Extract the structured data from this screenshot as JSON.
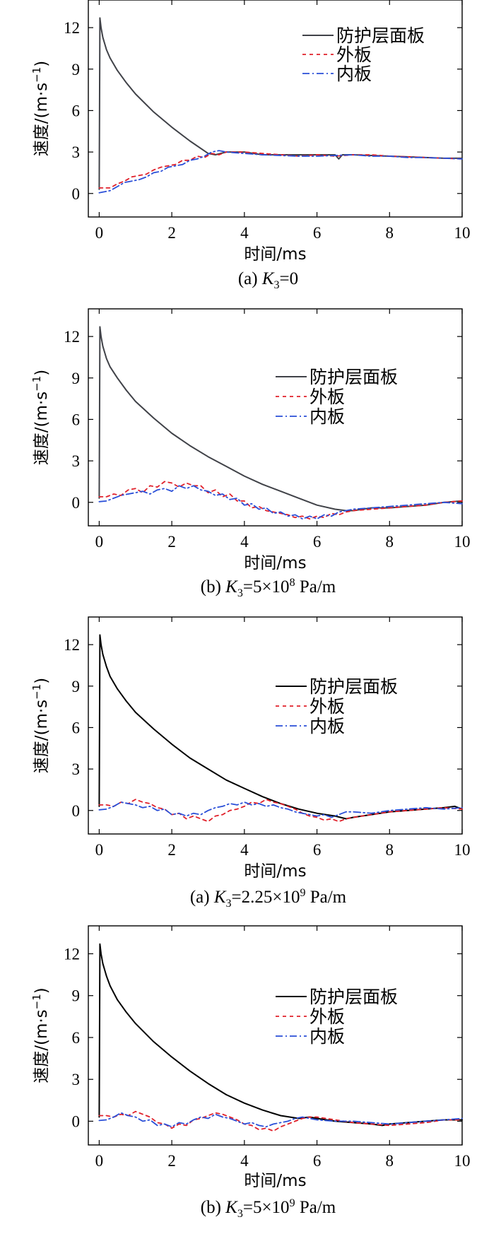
{
  "figure": {
    "colors": {
      "panel_gray": "#404248",
      "panel_black": "#000000",
      "outer_plate": "#e0202a",
      "inner_plate": "#2a4fd8"
    }
  },
  "chart_data": [
    {
      "type": "line",
      "caption": {
        "prefix": "(a) ",
        "var": "K",
        "sub": "3",
        "rest": "=0",
        "sup": "",
        "tail": ""
      },
      "xlabel": "时间/ms",
      "ylabel": "速度/(m·s",
      "ylabel_sup": "−1",
      "ylabel_close": ")",
      "xlim": [
        -0.3,
        10
      ],
      "ylim": [
        -1.7,
        14
      ],
      "xticks": [
        0,
        2,
        4,
        6,
        8,
        10
      ],
      "yticks": [
        0,
        3,
        6,
        9,
        12
      ],
      "legend_placement": "top-right",
      "series": [
        {
          "name": "防护层面板",
          "style": "solid",
          "color_key": "panel_gray",
          "x": [
            0,
            0.02,
            0.05,
            0.1,
            0.2,
            0.3,
            0.5,
            0.75,
            1.0,
            1.5,
            2.0,
            2.5,
            3.0,
            3.2,
            3.5,
            4.0,
            4.5,
            5.0,
            5.5,
            6.0,
            6.5,
            6.6,
            6.7,
            7.0,
            7.5,
            8.0,
            8.5,
            9.0,
            9.5,
            10.0
          ],
          "y": [
            0.3,
            12.7,
            12.0,
            11.3,
            10.4,
            9.8,
            8.9,
            8.0,
            7.2,
            5.9,
            4.8,
            3.8,
            2.9,
            2.8,
            3.0,
            3.0,
            2.8,
            2.8,
            2.8,
            2.8,
            2.8,
            2.5,
            2.8,
            2.8,
            2.75,
            2.7,
            2.65,
            2.6,
            2.55,
            2.55
          ]
        },
        {
          "name": "外板",
          "style": "dashed",
          "color_key": "outer_plate",
          "x": [
            0,
            0.1,
            0.3,
            0.5,
            0.7,
            0.9,
            1.1,
            1.3,
            1.5,
            1.7,
            1.9,
            2.1,
            2.3,
            2.5,
            2.7,
            2.9,
            3.1,
            3.3,
            3.5,
            4.0,
            4.5,
            5.0,
            5.5,
            6.0,
            6.5,
            7.0,
            7.5,
            8.0,
            8.5,
            9.0,
            9.5,
            10.0
          ],
          "y": [
            0.4,
            0.4,
            0.4,
            0.7,
            0.9,
            1.2,
            1.3,
            1.4,
            1.7,
            1.9,
            2.0,
            2.1,
            2.4,
            2.4,
            2.7,
            2.6,
            2.9,
            2.8,
            3.0,
            3.0,
            2.9,
            2.8,
            2.7,
            2.8,
            2.7,
            2.8,
            2.8,
            2.7,
            2.65,
            2.6,
            2.55,
            2.5
          ]
        },
        {
          "name": "内板",
          "style": "dashdot",
          "color_key": "inner_plate",
          "x": [
            0,
            0.1,
            0.3,
            0.5,
            0.7,
            0.9,
            1.1,
            1.3,
            1.5,
            1.7,
            1.9,
            2.1,
            2.3,
            2.5,
            2.7,
            2.9,
            3.1,
            3.3,
            3.5,
            4.0,
            4.5,
            5.0,
            5.5,
            6.0,
            6.5,
            7.0,
            7.5,
            8.0,
            8.5,
            9.0,
            9.5,
            10.0
          ],
          "y": [
            0.05,
            0.1,
            0.2,
            0.5,
            0.8,
            0.9,
            1.0,
            1.2,
            1.5,
            1.6,
            1.9,
            2.0,
            2.1,
            2.4,
            2.5,
            2.7,
            3.0,
            3.1,
            3.0,
            2.9,
            2.8,
            2.75,
            2.7,
            2.7,
            2.75,
            2.8,
            2.7,
            2.7,
            2.6,
            2.6,
            2.55,
            2.5
          ]
        }
      ]
    },
    {
      "type": "line",
      "caption": {
        "prefix": "(b) ",
        "var": "K",
        "sub": "3",
        "rest": "=5×10",
        "sup": "8",
        "tail": " Pa/m"
      },
      "xlabel": "时间/ms",
      "ylabel": "速度/(m·s",
      "ylabel_sup": "−1",
      "ylabel_close": ")",
      "xlim": [
        -0.3,
        10
      ],
      "ylim": [
        -1.7,
        14
      ],
      "xticks": [
        0,
        2,
        4,
        6,
        8,
        10
      ],
      "yticks": [
        0,
        3,
        6,
        9,
        12
      ],
      "legend_placement": "right",
      "series": [
        {
          "name": "防护层面板",
          "style": "solid",
          "color_key": "panel_gray",
          "x": [
            0,
            0.02,
            0.05,
            0.1,
            0.2,
            0.3,
            0.5,
            0.75,
            1.0,
            1.5,
            2.0,
            2.5,
            3.0,
            3.5,
            4.0,
            4.5,
            5.0,
            5.5,
            6.0,
            6.5,
            6.8,
            7.0,
            7.5,
            8.0,
            8.5,
            9.0,
            9.5,
            10.0
          ],
          "y": [
            0.3,
            12.7,
            12.0,
            11.3,
            10.4,
            9.8,
            9.0,
            8.1,
            7.3,
            6.1,
            5.0,
            4.1,
            3.3,
            2.6,
            1.9,
            1.3,
            0.8,
            0.3,
            -0.2,
            -0.5,
            -0.6,
            -0.6,
            -0.4,
            -0.4,
            -0.3,
            -0.2,
            0.0,
            0.1
          ]
        },
        {
          "name": "外板",
          "style": "dashed",
          "color_key": "outer_plate",
          "x": [
            0,
            0.2,
            0.4,
            0.6,
            0.8,
            1.0,
            1.2,
            1.4,
            1.6,
            1.8,
            2.0,
            2.2,
            2.4,
            2.6,
            2.8,
            3.0,
            3.2,
            3.4,
            3.6,
            3.8,
            4.0,
            4.2,
            4.4,
            4.6,
            4.8,
            5.0,
            5.2,
            5.4,
            5.6,
            5.8,
            6.0,
            6.2,
            6.4,
            6.6,
            6.8,
            7.0,
            7.5,
            8.0,
            8.5,
            9.0,
            9.5,
            10.0
          ],
          "y": [
            0.4,
            0.4,
            0.6,
            0.5,
            0.9,
            1.0,
            0.7,
            1.2,
            1.1,
            1.5,
            1.4,
            1.1,
            1.4,
            1.2,
            1.2,
            0.7,
            0.9,
            0.4,
            0.6,
            0.1,
            0.1,
            -0.4,
            -0.3,
            -0.6,
            -0.7,
            -0.8,
            -0.9,
            -1.1,
            -1.0,
            -1.2,
            -1.0,
            -1.1,
            -0.8,
            -0.9,
            -0.7,
            -0.6,
            -0.5,
            -0.4,
            -0.3,
            -0.2,
            0.0,
            0.1
          ]
        },
        {
          "name": "内板",
          "style": "dashdot",
          "color_key": "inner_plate",
          "x": [
            0,
            0.2,
            0.4,
            0.6,
            0.8,
            1.0,
            1.2,
            1.4,
            1.6,
            1.8,
            2.0,
            2.2,
            2.4,
            2.6,
            2.8,
            3.0,
            3.2,
            3.4,
            3.6,
            3.8,
            4.0,
            4.2,
            4.4,
            4.6,
            4.8,
            5.0,
            5.2,
            5.4,
            5.6,
            5.8,
            6.0,
            6.2,
            6.4,
            6.6,
            6.8,
            7.0,
            7.5,
            8.0,
            8.5,
            9.0,
            9.5,
            10.0
          ],
          "y": [
            0.05,
            0.1,
            0.3,
            0.5,
            0.6,
            0.7,
            0.8,
            0.6,
            0.9,
            1.0,
            0.8,
            1.2,
            1.0,
            1.2,
            0.9,
            0.8,
            0.5,
            0.6,
            0.2,
            0.3,
            -0.2,
            -0.1,
            -0.5,
            -0.4,
            -0.8,
            -0.7,
            -1.0,
            -0.9,
            -1.2,
            -1.0,
            -1.2,
            -0.9,
            -1.0,
            -0.7,
            -0.6,
            -0.5,
            -0.4,
            -0.3,
            -0.2,
            -0.1,
            0.0,
            -0.1
          ]
        }
      ]
    },
    {
      "type": "line",
      "caption": {
        "prefix": "(a) ",
        "var": "K",
        "sub": "3",
        "rest": "=2.25×10",
        "sup": "9",
        "tail": " Pa/m"
      },
      "xlabel": "时间/ms",
      "ylabel": "速度/(m·s",
      "ylabel_sup": "−1",
      "ylabel_close": ")",
      "xlim": [
        -0.3,
        10
      ],
      "ylim": [
        -1.7,
        14
      ],
      "xticks": [
        0,
        2,
        4,
        6,
        8,
        10
      ],
      "yticks": [
        0,
        3,
        6,
        9,
        12
      ],
      "legend_placement": "right",
      "series": [
        {
          "name": "防护层面板",
          "style": "solid",
          "color_key": "panel_black",
          "x": [
            0,
            0.02,
            0.05,
            0.1,
            0.2,
            0.3,
            0.5,
            0.75,
            1.0,
            1.5,
            2.0,
            2.5,
            3.0,
            3.5,
            4.0,
            4.5,
            5.0,
            5.5,
            6.0,
            6.5,
            6.8,
            7.0,
            7.5,
            8.0,
            8.5,
            9.0,
            9.5,
            9.8,
            10.0
          ],
          "y": [
            0.3,
            12.7,
            12.0,
            11.3,
            10.4,
            9.7,
            8.8,
            7.9,
            7.1,
            5.9,
            4.8,
            3.8,
            3.0,
            2.2,
            1.6,
            1.0,
            0.5,
            0.1,
            -0.2,
            -0.4,
            -0.6,
            -0.5,
            -0.3,
            -0.1,
            0.0,
            0.1,
            0.2,
            0.3,
            0.1
          ]
        },
        {
          "name": "外板",
          "style": "dashed",
          "color_key": "outer_plate",
          "x": [
            0,
            0.2,
            0.4,
            0.6,
            0.8,
            1.0,
            1.2,
            1.4,
            1.6,
            1.8,
            2.0,
            2.2,
            2.4,
            2.6,
            2.8,
            3.0,
            3.2,
            3.4,
            3.6,
            3.8,
            4.0,
            4.2,
            4.4,
            4.6,
            4.8,
            5.0,
            5.2,
            5.4,
            5.6,
            5.8,
            6.0,
            6.2,
            6.4,
            6.6,
            6.8,
            7.0,
            7.5,
            8.0,
            8.5,
            9.0,
            9.5,
            10.0
          ],
          "y": [
            0.4,
            0.4,
            0.3,
            0.6,
            0.5,
            0.8,
            0.6,
            0.5,
            0.2,
            0.1,
            -0.3,
            -0.2,
            -0.6,
            -0.4,
            -0.6,
            -0.8,
            -0.4,
            -0.3,
            0.0,
            0.1,
            0.3,
            0.6,
            0.5,
            0.8,
            0.6,
            0.5,
            0.3,
            0.1,
            -0.2,
            -0.4,
            -0.5,
            -0.7,
            -0.6,
            -0.8,
            -0.6,
            -0.5,
            -0.3,
            -0.1,
            0.0,
            0.1,
            0.2,
            0.1
          ]
        },
        {
          "name": "内板",
          "style": "dashdot",
          "color_key": "inner_plate",
          "x": [
            0,
            0.2,
            0.4,
            0.6,
            0.8,
            1.0,
            1.2,
            1.4,
            1.6,
            1.8,
            2.0,
            2.2,
            2.4,
            2.6,
            2.8,
            3.0,
            3.2,
            3.4,
            3.6,
            3.8,
            4.0,
            4.2,
            4.4,
            4.6,
            4.8,
            5.0,
            5.2,
            5.4,
            5.6,
            5.8,
            6.0,
            6.2,
            6.4,
            6.6,
            6.8,
            7.0,
            7.5,
            8.0,
            8.5,
            9.0,
            9.5,
            10.0
          ],
          "y": [
            0.05,
            0.1,
            0.3,
            0.6,
            0.5,
            0.4,
            0.2,
            0.3,
            0.0,
            0.1,
            -0.3,
            -0.2,
            -0.4,
            -0.2,
            -0.3,
            0.0,
            0.2,
            0.3,
            0.5,
            0.4,
            0.6,
            0.4,
            0.5,
            0.3,
            0.4,
            0.2,
            0.1,
            -0.1,
            -0.2,
            -0.3,
            -0.4,
            -0.3,
            -0.5,
            -0.3,
            -0.1,
            -0.1,
            -0.2,
            0.0,
            0.1,
            0.2,
            0.1,
            0.2
          ]
        }
      ]
    },
    {
      "type": "line",
      "caption": {
        "prefix": "(b) ",
        "var": "K",
        "sub": "3",
        "rest": "=5×10",
        "sup": "9",
        "tail": " Pa/m"
      },
      "xlabel": "时间/ms",
      "ylabel": "速度/(m·s",
      "ylabel_sup": "−1",
      "ylabel_close": ")",
      "xlim": [
        -0.3,
        10
      ],
      "ylim": [
        -1.7,
        14
      ],
      "xticks": [
        0,
        2,
        4,
        6,
        8,
        10
      ],
      "yticks": [
        0,
        3,
        6,
        9,
        12
      ],
      "legend_placement": "right",
      "series": [
        {
          "name": "防护层面板",
          "style": "solid",
          "color_key": "panel_black",
          "x": [
            0,
            0.02,
            0.05,
            0.1,
            0.2,
            0.3,
            0.5,
            0.75,
            1.0,
            1.5,
            2.0,
            2.5,
            3.0,
            3.5,
            4.0,
            4.5,
            5.0,
            5.5,
            5.8,
            6.0,
            6.5,
            7.0,
            7.5,
            7.8,
            8.0,
            8.5,
            9.0,
            9.5,
            10.0
          ],
          "y": [
            0.3,
            12.7,
            12.0,
            11.3,
            10.4,
            9.7,
            8.7,
            7.8,
            7.0,
            5.7,
            4.6,
            3.6,
            2.7,
            1.9,
            1.3,
            0.8,
            0.4,
            0.2,
            0.3,
            0.2,
            0.0,
            -0.1,
            -0.2,
            -0.3,
            -0.2,
            -0.1,
            0.0,
            0.1,
            0.1
          ]
        },
        {
          "name": "外板",
          "style": "dashed",
          "color_key": "outer_plate",
          "x": [
            0,
            0.2,
            0.4,
            0.6,
            0.8,
            1.0,
            1.2,
            1.4,
            1.6,
            1.8,
            2.0,
            2.2,
            2.4,
            2.6,
            2.8,
            3.0,
            3.2,
            3.4,
            3.6,
            3.8,
            4.0,
            4.2,
            4.4,
            4.6,
            4.8,
            5.0,
            5.2,
            5.4,
            5.6,
            5.8,
            6.0,
            6.5,
            7.0,
            7.5,
            8.0,
            8.5,
            9.0,
            9.5,
            10.0
          ],
          "y": [
            0.4,
            0.4,
            0.3,
            0.5,
            0.4,
            0.7,
            0.5,
            0.3,
            -0.1,
            -0.2,
            -0.5,
            -0.2,
            -0.3,
            0.1,
            0.2,
            0.4,
            0.6,
            0.5,
            0.3,
            0.1,
            -0.2,
            -0.3,
            -0.6,
            -0.5,
            -0.7,
            -0.4,
            -0.2,
            0.0,
            0.2,
            0.3,
            0.3,
            0.1,
            -0.1,
            -0.2,
            -0.3,
            -0.2,
            -0.1,
            0.1,
            0.1
          ]
        },
        {
          "name": "内板",
          "style": "dashdot",
          "color_key": "inner_plate",
          "x": [
            0,
            0.2,
            0.4,
            0.6,
            0.8,
            1.0,
            1.2,
            1.4,
            1.6,
            1.8,
            2.0,
            2.2,
            2.4,
            2.6,
            2.8,
            3.0,
            3.2,
            3.4,
            3.6,
            3.8,
            4.0,
            4.2,
            4.4,
            4.6,
            4.8,
            5.0,
            5.2,
            5.4,
            5.6,
            5.8,
            6.0,
            6.5,
            7.0,
            7.5,
            8.0,
            8.5,
            9.0,
            9.5,
            10.0
          ],
          "y": [
            0.05,
            0.1,
            0.3,
            0.6,
            0.4,
            0.3,
            0.0,
            0.1,
            -0.3,
            -0.2,
            -0.4,
            -0.1,
            -0.2,
            0.1,
            0.3,
            0.2,
            0.5,
            0.3,
            0.2,
            0.0,
            -0.2,
            -0.1,
            -0.3,
            -0.4,
            -0.2,
            -0.1,
            0.0,
            0.2,
            0.3,
            0.2,
            0.1,
            0.0,
            0.0,
            -0.1,
            -0.2,
            -0.1,
            0.0,
            0.1,
            0.2
          ]
        }
      ]
    }
  ]
}
